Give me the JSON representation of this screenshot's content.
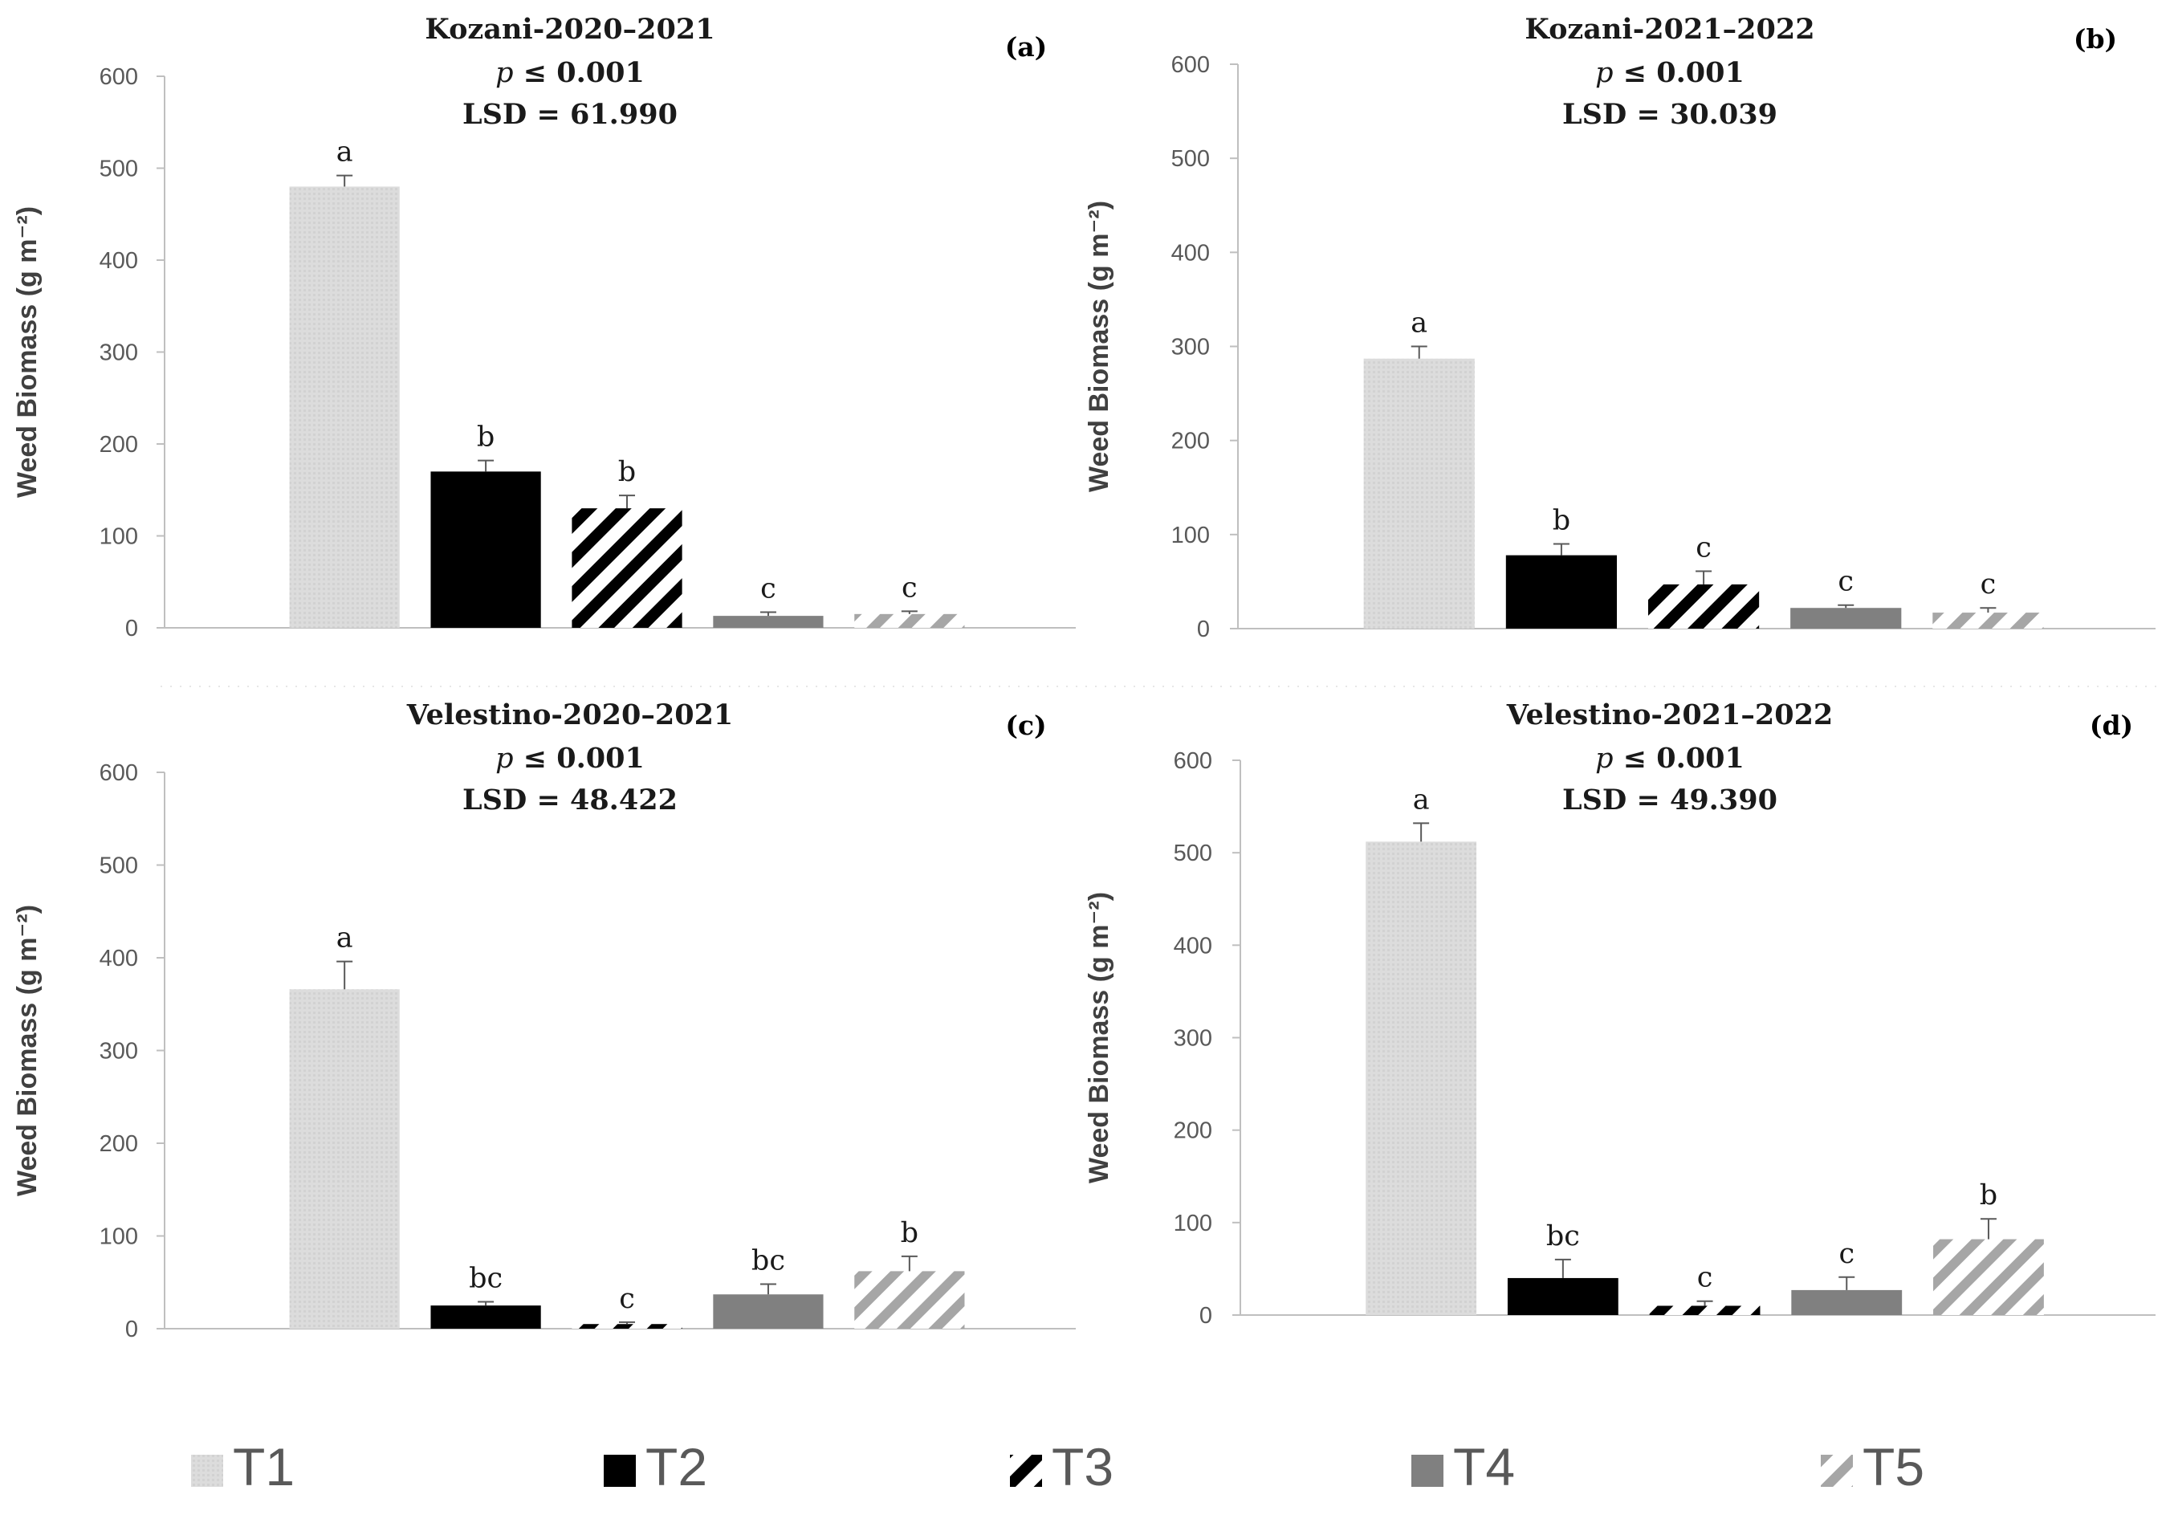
{
  "figure": {
    "legend": [
      {
        "key": "T1",
        "label": "T1"
      },
      {
        "key": "T2",
        "label": "T2"
      },
      {
        "key": "T3",
        "label": "T3"
      },
      {
        "key": "T4",
        "label": "T4"
      },
      {
        "key": "T5",
        "label": "T5"
      }
    ],
    "colors": {
      "T1": "#d9d9d9",
      "T2": "#000000",
      "T3": "#000000",
      "T4": "#808080",
      "T5": "#a6a6a6",
      "axis": "#bfbfbf",
      "tick_text": "#595959"
    }
  },
  "chart_data": [
    {
      "type": "bar",
      "panel_label": "(a)",
      "title": "Kozani-2020–2021",
      "p_value_prefix": "p",
      "p_value_rest": " ≤ 0.001",
      "lsd": "LSD = 61.990",
      "ylabel": "Weed Biomass (g m⁻²)",
      "ylim": [
        0,
        600
      ],
      "yticks": [
        0,
        100,
        200,
        300,
        400,
        500,
        600
      ],
      "categories": [
        "T1",
        "T2",
        "T3",
        "T4",
        "T5"
      ],
      "values": [
        480,
        170,
        130,
        13,
        15
      ],
      "errors": [
        12,
        12,
        14,
        4,
        3
      ],
      "letters": [
        "a",
        "b",
        "b",
        "c",
        "c"
      ]
    },
    {
      "type": "bar",
      "panel_label": "(b)",
      "title": "Kozani-2021–2022",
      "p_value_prefix": "p",
      "p_value_rest": " ≤ 0.001",
      "lsd": "LSD = 30.039",
      "ylabel": "Weed Biomass (g m⁻²)",
      "ylim": [
        0,
        600
      ],
      "yticks": [
        0,
        100,
        200,
        300,
        400,
        500,
        600
      ],
      "categories": [
        "T1",
        "T2",
        "T3",
        "T4",
        "T5"
      ],
      "values": [
        287,
        78,
        47,
        22,
        17
      ],
      "errors": [
        13,
        12,
        14,
        3,
        5
      ],
      "letters": [
        "a",
        "b",
        "c",
        "c",
        "c"
      ]
    },
    {
      "type": "bar",
      "panel_label": "(c)",
      "title": "Velestino-2020–2021",
      "p_value_prefix": "p",
      "p_value_rest": " ≤ 0.001",
      "lsd": "LSD = 48.422",
      "ylabel": "Weed Biomass (g m⁻²)",
      "ylim": [
        0,
        600
      ],
      "yticks": [
        0,
        100,
        200,
        300,
        400,
        500,
        600
      ],
      "categories": [
        "T1",
        "T2",
        "T3",
        "T4",
        "T5"
      ],
      "values": [
        366,
        25,
        5,
        37,
        62
      ],
      "errors": [
        30,
        4,
        2,
        11,
        16
      ],
      "letters": [
        "a",
        "bc",
        "c",
        "bc",
        "b"
      ]
    },
    {
      "type": "bar",
      "panel_label": "(d)",
      "title": "Velestino-2021–2022",
      "p_value_prefix": "p",
      "p_value_rest": " ≤ 0.001",
      "lsd": "LSD = 49.390",
      "ylabel": "Weed Biomass (g m⁻²)",
      "ylim": [
        0,
        600
      ],
      "yticks": [
        0,
        100,
        200,
        300,
        400,
        500,
        600
      ],
      "categories": [
        "T1",
        "T2",
        "T3",
        "T4",
        "T5"
      ],
      "values": [
        512,
        40,
        10,
        27,
        82
      ],
      "errors": [
        20,
        20,
        5,
        14,
        22
      ],
      "letters": [
        "a",
        "bc",
        "c",
        "c",
        "b"
      ]
    }
  ]
}
